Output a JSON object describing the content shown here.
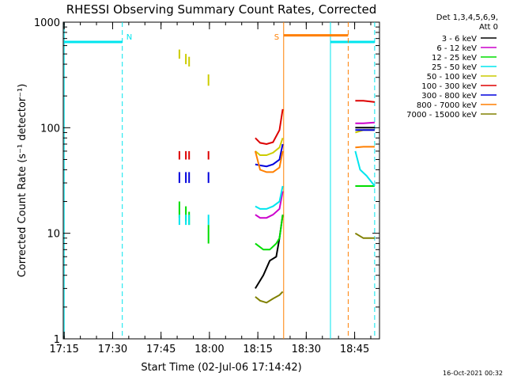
{
  "chart_data": {
    "type": "line",
    "title": "RHESSI Observing Summary Count Rates, Corrected",
    "xlabel": "Start Time (02-Jul-06 17:14:42)",
    "ylabel": "Corrected Count Rate (s⁻¹ detector⁻¹)",
    "y_scale": "log",
    "ylim": [
      1,
      1000
    ],
    "xlim_minutes": [
      0,
      98
    ],
    "x_ticks": [
      {
        "label": "17:15",
        "min": 0.3
      },
      {
        "label": "17:30",
        "min": 15.3
      },
      {
        "label": "17:45",
        "min": 30.3
      },
      {
        "label": "18:00",
        "min": 45.3
      },
      {
        "label": "18:15",
        "min": 60.3
      },
      {
        "label": "18:30",
        "min": 75.3
      },
      {
        "label": "18:45",
        "min": 90.3
      }
    ],
    "y_ticks": [
      {
        "label": "1",
        "v": 1
      },
      {
        "label": "10",
        "v": 10
      },
      {
        "label": "100",
        "v": 100
      },
      {
        "label": "1000",
        "v": 1000
      }
    ],
    "legend": {
      "header": [
        "Det 1,3,4,5,6,9,",
        "Att 0"
      ],
      "placement": "top-right outside plot"
    },
    "timestamp": "16-Oct-2021 00:32",
    "markers": [
      {
        "label": "N",
        "color": "#00e5ee",
        "lines_min": [
          0.3,
          18.3,
          82.8,
          96.5
        ],
        "dashed": [
          false,
          true,
          false,
          true
        ],
        "bar": [
          [
            0.3,
            18.3
          ],
          [
            82.8,
            96.5
          ]
        ],
        "bar_value": 650
      },
      {
        "label": "S",
        "color": "#ff7f00",
        "lines_min": [
          68.3,
          88.3
        ],
        "dashed": [
          false,
          true
        ],
        "bar": [
          [
            68.3,
            88.3
          ]
        ],
        "bar_value": 750
      }
    ],
    "series": [
      {
        "name": "3 - 6 keV",
        "color": "#000000",
        "segments": [
          [
            [
              59.5,
              3.0
            ],
            [
              62,
              4.0
            ],
            [
              64,
              5.5
            ],
            [
              66,
              6.0
            ],
            [
              67,
              9.0
            ],
            [
              68,
              15.0
            ]
          ],
          [
            [
              90.5,
              100
            ],
            [
              94,
              100
            ],
            [
              96.5,
              100
            ]
          ]
        ]
      },
      {
        "name": "6 - 12 keV",
        "color": "#cc00cc",
        "segments": [
          [
            [
              59.5,
              15
            ],
            [
              61,
              14
            ],
            [
              63,
              14
            ],
            [
              65,
              15
            ],
            [
              67,
              17
            ],
            [
              68,
              25
            ]
          ],
          [
            [
              90.5,
              110
            ],
            [
              93,
              110
            ],
            [
              96.5,
              112
            ]
          ]
        ]
      },
      {
        "name": "12 - 25 keV",
        "color": "#00dd00",
        "segments": [
          [
            [
              36,
              14
            ],
            [
              36,
              20
            ]
          ],
          [
            [
              38,
              13
            ],
            [
              38,
              18
            ]
          ],
          [
            [
              39,
              12
            ],
            [
              39,
              16
            ]
          ],
          [
            [
              45,
              8
            ],
            [
              45,
              12
            ]
          ],
          [
            [
              59.5,
              8
            ],
            [
              62,
              7
            ],
            [
              64,
              7
            ],
            [
              66,
              8
            ],
            [
              67,
              9
            ],
            [
              68,
              15
            ]
          ],
          [
            [
              90.5,
              28
            ],
            [
              96.5,
              28
            ]
          ]
        ]
      },
      {
        "name": "25 - 50 keV",
        "color": "#00e5ee",
        "segments": [
          [
            [
              36,
              12
            ],
            [
              36,
              15
            ]
          ],
          [
            [
              38,
              12
            ],
            [
              38,
              15
            ]
          ],
          [
            [
              39,
              12
            ],
            [
              39,
              15
            ]
          ],
          [
            [
              45,
              12
            ],
            [
              45,
              15
            ]
          ],
          [
            [
              59.5,
              18
            ],
            [
              61,
              17
            ],
            [
              63,
              17
            ],
            [
              65,
              18
            ],
            [
              67,
              20
            ],
            [
              68,
              28
            ]
          ],
          [
            [
              90.5,
              60
            ],
            [
              92,
              40
            ],
            [
              94,
              35
            ],
            [
              96.5,
              28
            ]
          ]
        ]
      },
      {
        "name": "50 - 100 keV",
        "color": "#cccc00",
        "segments": [
          [
            [
              36,
              450
            ],
            [
              36,
              550
            ]
          ],
          [
            [
              38,
              400
            ],
            [
              38,
              500
            ]
          ],
          [
            [
              39,
              380
            ],
            [
              39,
              470
            ]
          ],
          [
            [
              45,
              250
            ],
            [
              45,
              320
            ]
          ],
          [
            [
              59.5,
              60
            ],
            [
              61,
              55
            ],
            [
              63,
              55
            ],
            [
              65,
              58
            ],
            [
              67,
              65
            ],
            [
              68,
              80
            ]
          ],
          [
            [
              90.5,
              90
            ],
            [
              93,
              95
            ],
            [
              96.5,
              95
            ]
          ]
        ]
      },
      {
        "name": "100 - 300 keV",
        "color": "#dd0000",
        "segments": [
          [
            [
              36,
              50
            ],
            [
              36,
              60
            ]
          ],
          [
            [
              38,
              50
            ],
            [
              38,
              60
            ]
          ],
          [
            [
              39,
              50
            ],
            [
              39,
              60
            ]
          ],
          [
            [
              45,
              50
            ],
            [
              45,
              60
            ]
          ],
          [
            [
              59.5,
              80
            ],
            [
              61,
              72
            ],
            [
              63,
              70
            ],
            [
              65,
              73
            ],
            [
              67,
              95
            ],
            [
              68,
              150
            ]
          ],
          [
            [
              90.5,
              180
            ],
            [
              93,
              180
            ],
            [
              96.5,
              175
            ]
          ]
        ]
      },
      {
        "name": "300 - 800 keV",
        "color": "#0000dd",
        "segments": [
          [
            [
              36,
              30
            ],
            [
              36,
              38
            ]
          ],
          [
            [
              38,
              30
            ],
            [
              38,
              38
            ]
          ],
          [
            [
              39,
              30
            ],
            [
              39,
              38
            ]
          ],
          [
            [
              45,
              30
            ],
            [
              45,
              38
            ]
          ],
          [
            [
              59.5,
              45
            ],
            [
              61,
              44
            ],
            [
              63,
              43
            ],
            [
              65,
              45
            ],
            [
              67,
              50
            ],
            [
              68,
              70
            ]
          ],
          [
            [
              90.5,
              95
            ],
            [
              93,
              95
            ],
            [
              96.5,
              95
            ]
          ]
        ]
      },
      {
        "name": "800 - 7000 keV",
        "color": "#ff7f00",
        "segments": [
          [
            [
              59.5,
              60
            ],
            [
              61,
              40
            ],
            [
              63,
              38
            ],
            [
              65,
              38
            ],
            [
              67,
              42
            ],
            [
              68,
              60
            ]
          ],
          [
            [
              90.5,
              65
            ],
            [
              93,
              66
            ],
            [
              96.5,
              66
            ]
          ]
        ]
      },
      {
        "name": "7000 - 15000 keV",
        "color": "#808000",
        "segments": [
          [
            [
              59.5,
              2.5
            ],
            [
              61,
              2.3
            ],
            [
              63,
              2.2
            ],
            [
              65,
              2.4
            ],
            [
              67,
              2.6
            ],
            [
              68,
              2.8
            ]
          ],
          [
            [
              90.5,
              10
            ],
            [
              93,
              9
            ],
            [
              96.5,
              9
            ]
          ]
        ]
      }
    ]
  }
}
